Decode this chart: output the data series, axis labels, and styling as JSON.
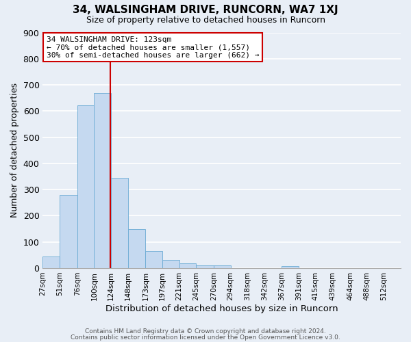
{
  "title1": "34, WALSINGHAM DRIVE, RUNCORN, WA7 1XJ",
  "title2": "Size of property relative to detached houses in Runcorn",
  "xlabel": "Distribution of detached houses by size in Runcorn",
  "ylabel": "Number of detached properties",
  "bar_color": "#c5d9f0",
  "bar_edge_color": "#6aaad4",
  "background_color": "#e8eef6",
  "grid_color": "#ffffff",
  "bin_labels": [
    "27sqm",
    "51sqm",
    "76sqm",
    "100sqm",
    "124sqm",
    "148sqm",
    "173sqm",
    "197sqm",
    "221sqm",
    "245sqm",
    "270sqm",
    "294sqm",
    "318sqm",
    "342sqm",
    "367sqm",
    "391sqm",
    "415sqm",
    "439sqm",
    "464sqm",
    "488sqm",
    "512sqm"
  ],
  "bar_heights": [
    44,
    280,
    622,
    670,
    345,
    148,
    65,
    32,
    17,
    11,
    11,
    0,
    0,
    0,
    9,
    0,
    0,
    0,
    0,
    0,
    0
  ],
  "bin_edges": [
    27,
    51,
    76,
    100,
    124,
    148,
    173,
    197,
    221,
    245,
    270,
    294,
    318,
    342,
    367,
    391,
    415,
    439,
    464,
    488,
    512,
    536
  ],
  "vline_x": 123,
  "vline_color": "#cc0000",
  "ylim": [
    0,
    900
  ],
  "yticks": [
    0,
    100,
    200,
    300,
    400,
    500,
    600,
    700,
    800,
    900
  ],
  "annotation_title": "34 WALSINGHAM DRIVE: 123sqm",
  "annotation_line1": "← 70% of detached houses are smaller (1,557)",
  "annotation_line2": "30% of semi-detached houses are larger (662) →",
  "annotation_box_color": "#ffffff",
  "annotation_box_edge": "#cc0000",
  "footer1": "Contains HM Land Registry data © Crown copyright and database right 2024.",
  "footer2": "Contains public sector information licensed under the Open Government Licence v3.0."
}
